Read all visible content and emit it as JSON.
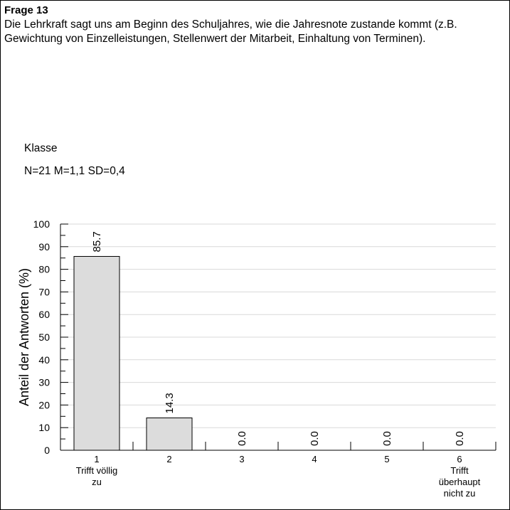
{
  "question": {
    "title": "Frage 13",
    "text": "Die Lehrkraft sagt uns am Beginn des Schuljahres, wie die Jahresnote zustande kommt (z.B. Gewichtung von Einzelleistungen, Stellenwert der Mitarbeit, Einhaltung von Terminen)."
  },
  "group_label": "Klasse",
  "stats": "N=21 M=1,1 SD=0,4",
  "chart_data": {
    "type": "bar",
    "categories": [
      "1",
      "2",
      "3",
      "4",
      "5",
      "6"
    ],
    "category_sublabels": [
      [
        "Trifft völlig",
        "zu"
      ],
      [],
      [],
      [],
      [],
      [
        "Trifft",
        "überhaupt",
        "nicht zu"
      ]
    ],
    "values": [
      85.7,
      14.3,
      0.0,
      0.0,
      0.0,
      0.0
    ],
    "value_labels": [
      "85.7",
      "14.3",
      "0.0",
      "0.0",
      "0.0",
      "0.0"
    ],
    "ylabel": "Anteil der Antworten (%)",
    "ylim": [
      0,
      100
    ],
    "yticks": [
      0,
      10,
      20,
      30,
      40,
      50,
      60,
      70,
      80,
      90,
      100
    ],
    "grid": true,
    "bar_color": "#dcdcdc"
  }
}
